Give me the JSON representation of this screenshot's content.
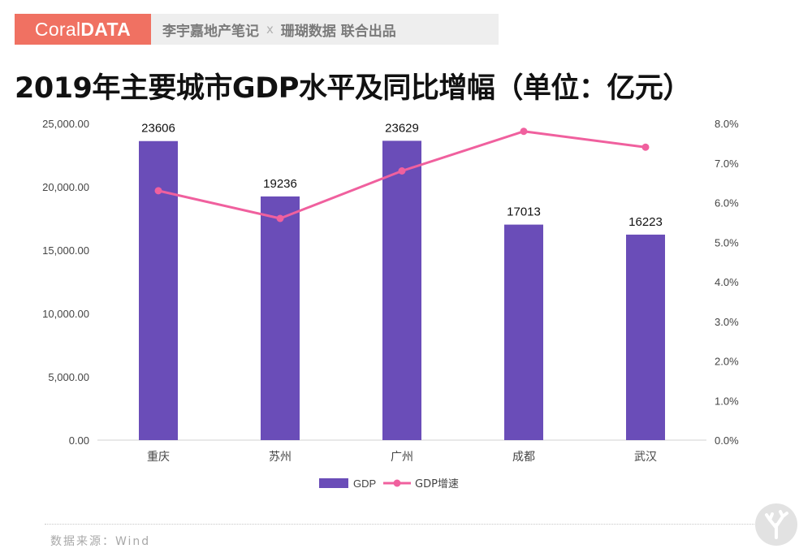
{
  "brand": {
    "logo_light": "Coral",
    "logo_bold": "DATA",
    "partner_left": "李宇嘉地产笔记",
    "separator": "x",
    "partner_right": "珊瑚数据 联合出品"
  },
  "footer": {
    "source": "数据来源：Wind"
  },
  "chart_data": {
    "type": "bar",
    "title": "2019年主要城市GDP水平及同比增幅（单位：亿元）",
    "categories": [
      "重庆",
      "苏州",
      "广州",
      "成都",
      "武汉"
    ],
    "series": [
      {
        "name": "GDP",
        "type": "bar",
        "axis": "left",
        "color": "#6a4db8",
        "values": [
          23606,
          19236,
          23629,
          17013,
          16223
        ],
        "data_labels": [
          "23606",
          "19236",
          "23629",
          "17013",
          "16223"
        ]
      },
      {
        "name": "GDP增速",
        "type": "line",
        "axis": "right",
        "color": "#f0609e",
        "values": [
          6.3,
          5.6,
          6.8,
          7.8,
          7.4
        ]
      }
    ],
    "y_left": {
      "min": 0,
      "max": 25000,
      "ticks": [
        "0.00",
        "5,000.00",
        "10,000.00",
        "15,000.00",
        "20,000.00",
        "25,000.00"
      ]
    },
    "y_right": {
      "min": 0,
      "max": 8,
      "ticks": [
        "0.0%",
        "1.0%",
        "2.0%",
        "3.0%",
        "4.0%",
        "5.0%",
        "6.0%",
        "7.0%",
        "8.0%"
      ]
    },
    "grid": false,
    "legend": "bottom-center"
  }
}
